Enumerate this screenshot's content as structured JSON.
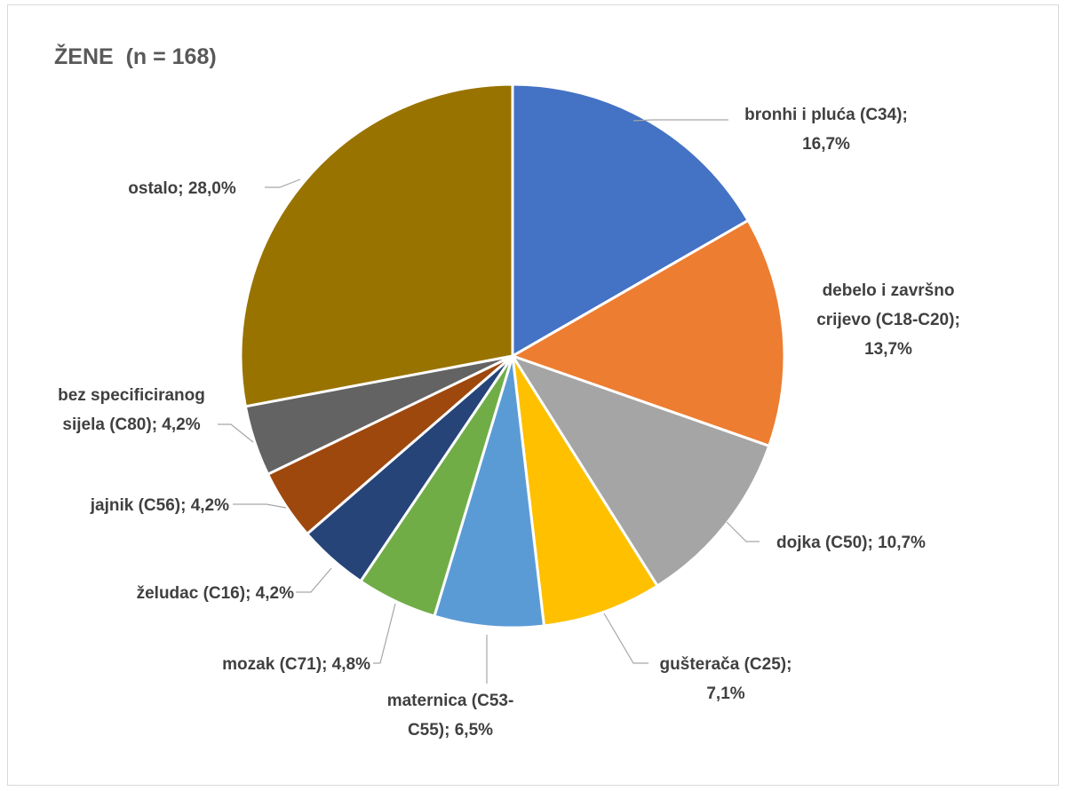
{
  "chart_data": {
    "type": "pie",
    "title": "ŽENE  (n = 168)",
    "categories": [
      "bronhi i pluća (C34)",
      "debelo i završno crijevo (C18-C20)",
      "dojka (C50)",
      "gušterača (C25)",
      "maternica (C53-C55)",
      "mozak (C71)",
      "želudac (C16)",
      "jajnik (C56)",
      "bez specificiranog sijela (C80)",
      "ostalo"
    ],
    "values": [
      16.7,
      13.7,
      10.7,
      7.1,
      6.5,
      4.8,
      4.2,
      4.2,
      4.2,
      28.0
    ],
    "colors": [
      "#4472C4",
      "#ED7D31",
      "#A5A5A5",
      "#FFC000",
      "#5B9BD5",
      "#70AD47",
      "#264478",
      "#9E480E",
      "#636363",
      "#997300"
    ],
    "labels": [
      [
        "bronhi i pluća (C34);",
        "16,7%"
      ],
      [
        "debelo i završno",
        "crijevo (C18-C20);",
        "13,7%"
      ],
      [
        "dojka (C50); 10,7%"
      ],
      [
        "gušterača (C25);",
        "7,1%"
      ],
      [
        "maternica (C53-",
        "C55); 6,5%"
      ],
      [
        "mozak (C71); 4,8%"
      ],
      [
        "želudac (C16); 4,2%"
      ],
      [
        "jajnik (C56); 4,2%"
      ],
      [
        "bez specificiranog",
        "sijela (C80); 4,2%"
      ],
      [
        "ostalo; 28,0%"
      ]
    ]
  }
}
